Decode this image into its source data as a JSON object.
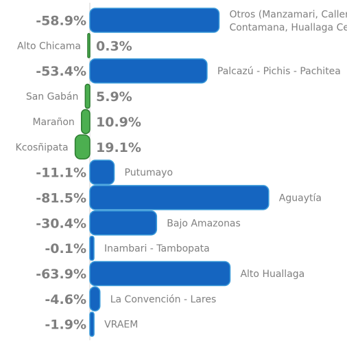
{
  "chart_data": {
    "type": "bar",
    "orientation": "horizontal",
    "title": "",
    "xlabel": "",
    "ylabel": "",
    "colors": {
      "negative": "#1565c0",
      "positive": "#4caf50",
      "negative_border": "#3a9ad9",
      "positive_border": "#2e7d32"
    },
    "categories": [
      [
        "Otros (Manzamari, Callería Masisea,",
        "Contamana, Huallaga Central)"
      ],
      [
        "Alto Chicama"
      ],
      [
        "Palcazú - Pichis - Pachitea"
      ],
      [
        "San Gabán"
      ],
      [
        "Marañon"
      ],
      [
        "Kcosñipata"
      ],
      [
        "Putumayo"
      ],
      [
        "Aguaytía"
      ],
      [
        "Bajo Amazonas"
      ],
      [
        "Inambari - Tambopata"
      ],
      [
        "Alto Huallaga"
      ],
      [
        "La Convención - Lares"
      ],
      [
        "VRAEM"
      ]
    ],
    "values": [
      -58.9,
      0.3,
      -53.4,
      5.9,
      10.9,
      19.1,
      -11.1,
      -81.5,
      -30.4,
      -0.1,
      -63.9,
      -4.6,
      -1.9
    ],
    "value_labels": [
      "-58.9%",
      "0.3%",
      "-53.4%",
      "5.9%",
      "10.9%",
      "19.1%",
      "-11.1%",
      "-81.5%",
      "-30.4%",
      "-0.1%",
      "-63.9%",
      "-4.6%",
      "-1.9%"
    ]
  }
}
